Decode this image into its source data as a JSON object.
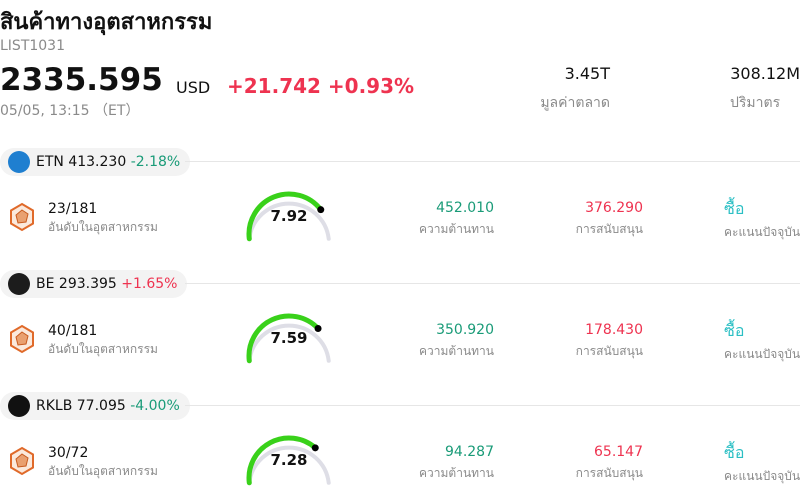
{
  "header": {
    "title": "สินค้าทางอุตสาหกรรม",
    "code": "LIST1031",
    "price": "2335.595",
    "currency": "USD",
    "change": "+21.742 +0.93%",
    "time": "05/05, 13:15 （ET）"
  },
  "stats": [
    {
      "value": "3.45T",
      "label": "มูลค่าตลาด"
    },
    {
      "value": "308.12M",
      "label": "ปริมาตร"
    }
  ],
  "stocks": [
    {
      "symbol": "ETN",
      "price": "413.230",
      "change": "-2.18%",
      "rank": "23/181",
      "rank_label": "อันดับในอุตสาหกรรม",
      "score": 7.92,
      "resistance": "452.010",
      "resistance_label": "ความต้านทาน",
      "support": "376.290",
      "support_label": "การสนับสนุน",
      "signal": "ซื้อ",
      "signal_label": "คะแนนปัจจุบัน"
    },
    {
      "symbol": "BE",
      "price": "293.395",
      "change": "+1.65%",
      "rank": "40/181",
      "rank_label": "อันดับในอุตสาหกรรม",
      "score": 7.59,
      "resistance": "350.920",
      "resistance_label": "ความต้านทาน",
      "support": "178.430",
      "support_label": "การสนับสนุน",
      "signal": "ซื้อ",
      "signal_label": "คะแนนปัจจุบัน"
    },
    {
      "symbol": "RKLB",
      "price": "77.095",
      "change": "-4.00%",
      "rank": "30/72",
      "rank_label": "อันดับในอุตสาหกรรม",
      "score": 7.28,
      "resistance": "94.287",
      "resistance_label": "ความต้านทาน",
      "support": "65.147",
      "support_label": "การสนับสนุน",
      "signal": "ซื้อ",
      "signal_label": "คะแนนปัจจุบัน"
    }
  ]
}
